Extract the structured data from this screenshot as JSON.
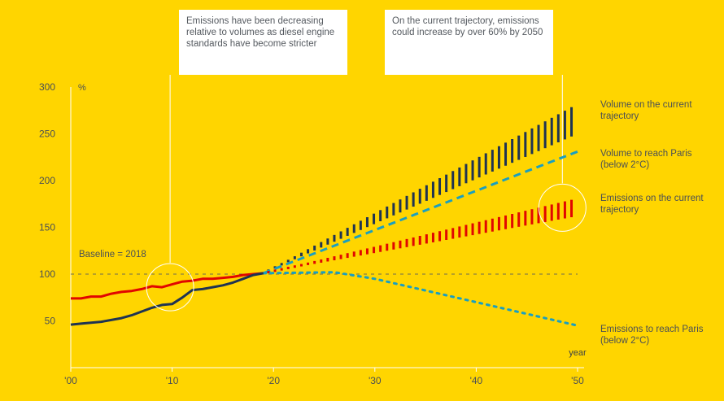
{
  "chart_data": {
    "type": "line",
    "x_range": [
      2000,
      2050
    ],
    "y_range": [
      0,
      300
    ],
    "y_unit": "%",
    "x_axis_title": "year",
    "x_ticks": [
      {
        "value": 2000,
        "label": "'00"
      },
      {
        "value": 2010,
        "label": "'10"
      },
      {
        "value": 2020,
        "label": "'20"
      },
      {
        "value": 2030,
        "label": "'30"
      },
      {
        "value": 2040,
        "label": "'40"
      },
      {
        "value": 2050,
        "label": "'50"
      }
    ],
    "y_ticks": [
      {
        "value": 50,
        "label": "50"
      },
      {
        "value": 100,
        "label": "100"
      },
      {
        "value": 150,
        "label": "150"
      },
      {
        "value": 200,
        "label": "200"
      },
      {
        "value": 250,
        "label": "250"
      },
      {
        "value": 300,
        "label": "300"
      }
    ],
    "baseline": {
      "value": 100,
      "label": "Baseline = 2018"
    },
    "historical": [
      {
        "key": "emissions",
        "color": "#E10600",
        "points": [
          [
            2000,
            74
          ],
          [
            2001,
            74
          ],
          [
            2002,
            76
          ],
          [
            2003,
            76
          ],
          [
            2004,
            79
          ],
          [
            2005,
            81
          ],
          [
            2006,
            82
          ],
          [
            2007,
            84
          ],
          [
            2008,
            87
          ],
          [
            2009,
            86
          ],
          [
            2010,
            89
          ],
          [
            2011,
            92
          ],
          [
            2012,
            93
          ],
          [
            2013,
            95
          ],
          [
            2014,
            95
          ],
          [
            2015,
            96
          ],
          [
            2016,
            97
          ],
          [
            2017,
            99
          ],
          [
            2018,
            100
          ],
          [
            2019,
            101
          ]
        ]
      },
      {
        "key": "volume",
        "color": "#1F3352",
        "points": [
          [
            2000,
            46
          ],
          [
            2001,
            47
          ],
          [
            2002,
            48
          ],
          [
            2003,
            49
          ],
          [
            2004,
            51
          ],
          [
            2005,
            53
          ],
          [
            2006,
            56
          ],
          [
            2007,
            60
          ],
          [
            2008,
            64
          ],
          [
            2009,
            67
          ],
          [
            2010,
            68
          ],
          [
            2011,
            75
          ],
          [
            2012,
            83
          ],
          [
            2013,
            84
          ],
          [
            2014,
            86
          ],
          [
            2015,
            88
          ],
          [
            2016,
            91
          ],
          [
            2017,
            95
          ],
          [
            2018,
            99
          ],
          [
            2019,
            101
          ]
        ]
      }
    ],
    "projections": [
      {
        "key": "volume_current",
        "label": "Volume on the current trajectory",
        "color": "#1F3352",
        "style": "hatched-band",
        "x": [
          2019,
          2050
        ],
        "lower": [
          101,
          250
        ],
        "upper": [
          101,
          282
        ]
      },
      {
        "key": "volume_paris",
        "label": "Volume to reach Paris (below 2°C)",
        "color": "#1A9FC0",
        "style": "dashed",
        "x": [
          2019,
          2050
        ],
        "values": [
          101,
          231
        ]
      },
      {
        "key": "emissions_current",
        "label": "Emissions on the current trajectory",
        "color": "#E10600",
        "style": "hatched-band",
        "x": [
          2019,
          2050
        ],
        "lower": [
          101,
          162
        ],
        "upper": [
          101,
          181
        ]
      },
      {
        "key": "emissions_paris",
        "label": "Emissions to reach Paris (below 2°C)",
        "color": "#1A9FC0",
        "style": "dotted",
        "points": [
          [
            2019,
            101
          ],
          [
            2026,
            102
          ],
          [
            2030,
            95
          ],
          [
            2040,
            70
          ],
          [
            2050,
            45
          ]
        ]
      }
    ],
    "annotations": [
      {
        "key": "left",
        "text": "Emissions have been decreasing relative to volumes as diesel engine standards have become stricter",
        "highlight": [
          2009.8,
          86
        ]
      },
      {
        "key": "right",
        "text": "On the current trajectory, emissions could increase by over 60% by 2050",
        "highlight": [
          2048.5,
          171
        ]
      }
    ]
  }
}
